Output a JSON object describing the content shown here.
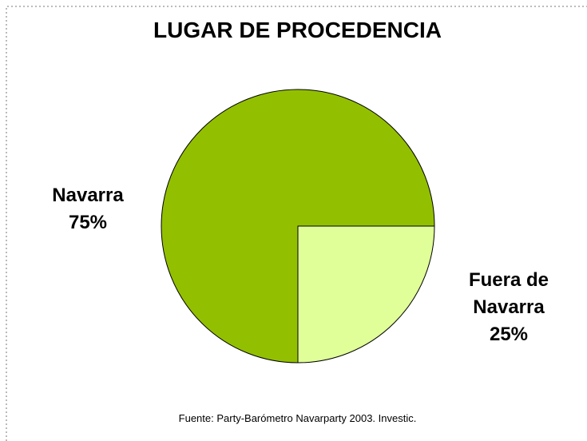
{
  "chart_data": {
    "type": "pie",
    "title": "LUGAR DE PROCEDENCIA",
    "categories": [
      "Navarra",
      "Fuera de Navarra"
    ],
    "values": [
      75,
      25
    ],
    "value_labels": [
      "75%",
      "25%"
    ],
    "colors": [
      "#92c000",
      "#e0ff98"
    ],
    "source": "Fuente: Party-Barómetro Navarparty 2003. Investic."
  }
}
